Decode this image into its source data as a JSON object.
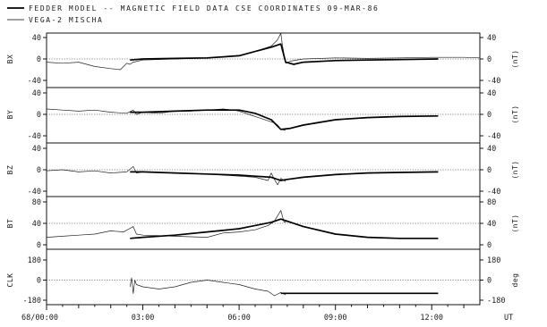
{
  "header": {
    "line1": "FEDDER MODEL -- MAGNETIC FIELD DATA  CSE COORDINATES 09-MAR-86",
    "line2": "VEGA-2 MISCHA"
  },
  "chart_data": {
    "type": "line",
    "x_unit": "UT",
    "x_range": [
      "68/00:00",
      "68/13:30"
    ],
    "x_ticks": [
      "68/00:00",
      "03:00",
      "06:00",
      "09:00",
      "12:00"
    ],
    "legend": [
      {
        "name": "FEDDER MODEL",
        "style": "thick line"
      },
      {
        "name": "VEGA-2 MISCHA",
        "style": "thin line"
      }
    ],
    "panels": [
      {
        "ylabel": "BX",
        "unit": "(nT)",
        "ylim": [
          -40,
          40
        ],
        "left_ticks": [
          "40",
          "0",
          "-40"
        ],
        "right_ticks": [
          "40",
          "0",
          "-40"
        ],
        "series": [
          {
            "name": "VEGA-2 MISCHA",
            "x": [
              0,
              0.5,
              1.0,
              1.5,
              2.0,
              2.3,
              2.5,
              2.6,
              2.7,
              3.0,
              4.0,
              5.0,
              5.5,
              6.0,
              6.5,
              6.8,
              7.0,
              7.2,
              7.3,
              7.35,
              7.45,
              7.6,
              8.0,
              9.0,
              10.0,
              11.0,
              12.0,
              13.0,
              13.5
            ],
            "y": [
              -6,
              -8,
              -6,
              -14,
              -18,
              -20,
              -8,
              -10,
              -6,
              -2,
              0,
              2,
              4,
              6,
              14,
              20,
              24,
              36,
              48,
              25,
              -8,
              -4,
              0,
              2,
              1,
              2,
              3,
              3,
              2
            ]
          },
          {
            "name": "FEDDER MODEL",
            "x": [
              2.6,
              3.0,
              4.0,
              5.0,
              6.0,
              6.5,
              7.0,
              7.2,
              7.3,
              7.45,
              7.7,
              8.0,
              9.0,
              10.0,
              11.0,
              12.2
            ],
            "y": [
              -2,
              0,
              1,
              2,
              6,
              14,
              22,
              26,
              28,
              -6,
              -10,
              -6,
              -3,
              -2,
              -1,
              0
            ]
          }
        ]
      },
      {
        "ylabel": "BY",
        "unit": "(nT)",
        "ylim": [
          -40,
          40
        ],
        "left_ticks": [
          "40",
          "0",
          "-40"
        ],
        "right_ticks": [
          "40",
          "0",
          "-40"
        ],
        "series": [
          {
            "name": "VEGA-2 MISCHA",
            "x": [
              0,
              0.5,
              1.0,
              1.5,
              2.0,
              2.5,
              2.7,
              2.8,
              3.0,
              3.5,
              4.0,
              4.5,
              5.0,
              5.5,
              5.8,
              6.0,
              6.3,
              6.6,
              6.9,
              7.1,
              7.2,
              7.3,
              7.45
            ],
            "y": [
              10,
              8,
              6,
              8,
              4,
              2,
              8,
              0,
              4,
              2,
              6,
              6,
              8,
              10,
              8,
              6,
              0,
              -6,
              -12,
              -16,
              -20,
              -28,
              -30
            ]
          },
          {
            "name": "FEDDER MODEL",
            "x": [
              2.6,
              3.0,
              4.0,
              5.0,
              6.0,
              6.5,
              7.0,
              7.3,
              7.6,
              8.0,
              9.0,
              10.0,
              11.0,
              12.2
            ],
            "y": [
              4,
              4,
              6,
              8,
              8,
              2,
              -10,
              -28,
              -26,
              -20,
              -10,
              -6,
              -4,
              -3
            ]
          }
        ]
      },
      {
        "ylabel": "BZ",
        "unit": "(nT)",
        "ylim": [
          -40,
          40
        ],
        "left_ticks": [
          "40",
          "0",
          "-40"
        ],
        "right_ticks": [
          "40",
          "0",
          "-40"
        ],
        "series": [
          {
            "name": "VEGA-2 MISCHA",
            "x": [
              0,
              0.5,
              1.0,
              1.5,
              2.0,
              2.5,
              2.7,
              2.8,
              3.0,
              4.0,
              5.0,
              5.5,
              6.0,
              6.5,
              6.9,
              7.0,
              7.1,
              7.2,
              7.3,
              7.45
            ],
            "y": [
              -2,
              0,
              -4,
              -2,
              -6,
              -4,
              6,
              -6,
              -4,
              -6,
              -8,
              -10,
              -12,
              -14,
              -20,
              -6,
              -18,
              -28,
              -16,
              -22
            ]
          },
          {
            "name": "FEDDER MODEL",
            "x": [
              2.6,
              3.0,
              4.0,
              5.0,
              6.0,
              6.5,
              7.0,
              7.3,
              7.5,
              8.0,
              9.0,
              10.0,
              11.0,
              12.2
            ],
            "y": [
              -4,
              -4,
              -6,
              -8,
              -10,
              -12,
              -14,
              -20,
              -18,
              -14,
              -9,
              -6,
              -5,
              -4
            ]
          }
        ]
      },
      {
        "ylabel": "BT",
        "unit": "(nT)",
        "ylim": [
          0,
          80
        ],
        "left_ticks": [
          "80",
          "40",
          "0"
        ],
        "right_ticks": [
          "80",
          "40",
          "0"
        ],
        "series": [
          {
            "name": "VEGA-2 MISCHA",
            "x": [
              0,
              0.5,
              1.0,
              1.5,
              2.0,
              2.4,
              2.7,
              2.8,
              3.0,
              4.0,
              5.0,
              5.5,
              6.0,
              6.5,
              6.9,
              7.1,
              7.3,
              7.4,
              7.5
            ],
            "y": [
              14,
              16,
              18,
              20,
              26,
              24,
              34,
              20,
              18,
              16,
              14,
              22,
              24,
              28,
              36,
              44,
              64,
              42,
              44
            ]
          },
          {
            "name": "FEDDER MODEL",
            "x": [
              2.6,
              3.0,
              4.0,
              5.0,
              6.0,
              6.5,
              7.0,
              7.3,
              7.5,
              8.0,
              9.0,
              10.0,
              11.0,
              12.2
            ],
            "y": [
              12,
              14,
              18,
              24,
              30,
              36,
              42,
              48,
              44,
              34,
              20,
              14,
              12,
              12
            ]
          }
        ]
      },
      {
        "ylabel": "CLK",
        "unit": "deg",
        "ylim": [
          -180,
          180
        ],
        "left_ticks": [
          "180",
          "0",
          "-180"
        ],
        "right_ticks": [
          "180",
          "0",
          "-180"
        ],
        "series": [
          {
            "name": "VEGA-2 MISCHA",
            "x": [
              2.6,
              2.65,
              2.7,
              2.75,
              2.8,
              3.0,
              3.5,
              4.0,
              4.5,
              5.0,
              5.5,
              6.0,
              6.5,
              6.9,
              7.1,
              7.3,
              7.45
            ],
            "y": [
              -60,
              20,
              -120,
              0,
              -40,
              -60,
              -80,
              -60,
              -20,
              0,
              -20,
              -40,
              -80,
              -100,
              -140,
              -110,
              -130
            ]
          },
          {
            "name": "FEDDER MODEL",
            "x": [
              7.3,
              9.0,
              10.0,
              11.0,
              12.2
            ],
            "y": [
              -118,
              -118,
              -118,
              -118,
              -118
            ]
          }
        ]
      }
    ]
  }
}
